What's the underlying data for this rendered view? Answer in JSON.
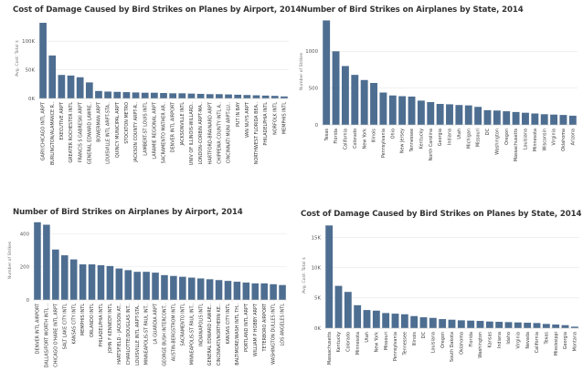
{
  "chart_data": [
    {
      "type": "bar",
      "title": "Cost of Damage Caused by Bird Strikes on Planes by Airport, 2014",
      "ylabel": "Avg. Cost: Total $",
      "xlabel": "",
      "ylim": [
        0,
        140000
      ],
      "yticks": [
        0,
        50000,
        100000
      ],
      "ytick_labels": [
        "0K",
        "50K",
        "100K"
      ],
      "grid": true,
      "color": "#4e6e91",
      "categories": [
        "GARY/CHICAGO INTL ARPT",
        "BURLINGTON/ALAMANCE R..",
        "EXECUTIVE ARPT",
        "GREATER ROCHESTER INTL",
        "FRANCIS S GABRESKI ARPT",
        "GENERAL EDWARD LAWRE..",
        "BOWERMAN ARPT",
        "LOUISVILLE INTL ARPT-STA..",
        "QUINCY MUNICIPAL ARPT",
        "STOCKTON METRO",
        "JACKSON COUNTY ARPT-R..",
        "LAMBERT-ST LOUIS INTL",
        "LARAMIE REGIONAL ARPT",
        "SACRAMENTO MATHER AR..",
        "DENVER INTL AIRPORT",
        "JACKSONVILLE INTL",
        "UNIV OF ILLINOIS-WILLARD..",
        "LONDON-CORBIN ARPT-MA..",
        "HARTFORD-BRAINARD ARPT",
        "CHIPPEWA COUNTY INTL A..",
        "CINCINNATI MUNI ARPT-LU..",
        "PUT IN BAY",
        "VAN NUYS ARPT",
        "NORTHWEST FLORIDA BEA..",
        "PHILADELPHIA INTL",
        "NORFOLK INTL",
        "MEMPHIS INTL"
      ],
      "values": [
        132000,
        75000,
        41000,
        40000,
        37000,
        28000,
        13000,
        12000,
        11500,
        11000,
        10500,
        10000,
        10000,
        9500,
        9000,
        9000,
        8500,
        8000,
        7500,
        7500,
        7000,
        6500,
        6000,
        5500,
        5000,
        4500,
        3500
      ]
    },
    {
      "type": "bar",
      "title": "Number of Bird Strikes on Airplanes by State, 2014",
      "ylabel": "Number of Strikes",
      "xlabel": "",
      "ylim": [
        0,
        1450
      ],
      "yticks": [
        0,
        500,
        1000
      ],
      "ytick_labels": [
        "0",
        "500",
        "1000"
      ],
      "grid": true,
      "color": "#4e6e91",
      "categories": [
        "Texas",
        "Florida",
        "California",
        "Colorado",
        "New York",
        "Illinois",
        "Pennsylvania",
        "Ohio",
        "New Jersey",
        "Tennessee",
        "Kentucky",
        "North Carolina",
        "Georgia",
        "Indiana",
        "Utah",
        "Michigan",
        "Missouri",
        "DC",
        "Washington",
        "Oregon",
        "Massachusetts",
        "Louisiana",
        "Minnesota",
        "Wisconsin",
        "Virginia",
        "Oklahoma",
        "Arizona"
      ],
      "values": [
        1420,
        1000,
        800,
        680,
        610,
        570,
        440,
        400,
        390,
        385,
        330,
        310,
        285,
        280,
        270,
        265,
        245,
        200,
        195,
        185,
        175,
        165,
        155,
        145,
        140,
        135,
        125
      ]
    },
    {
      "type": "bar",
      "title": "Number of Bird Strikes on Airplanes by Airport, 2014",
      "ylabel": "Number of Strikes",
      "xlabel": "",
      "ylim": [
        0,
        480
      ],
      "yticks": [
        0,
        200,
        400
      ],
      "ytick_labels": [
        "0",
        "200",
        "400"
      ],
      "grid": true,
      "color": "#4e6e91",
      "categories": [
        "DENVER INTL AIRPORT",
        "DALLAS/FORT WORTH INTL ..",
        "CHICAGO O'HARE INTL ARPT",
        "SALT LAKE CITY INTL",
        "KANSAS CITY INTL",
        "MEMPHIS INTL",
        "ORLANDO INTL",
        "PHILADELPHIA INTL",
        "JOHN F KENNEDY INTL",
        "HARTSFIELD - JACKSON AT..",
        "CHARLOTTE/DOUGLAS INT..",
        "LOUISVILLE INTL ARPT-STA..",
        "MINNEAPOLIS-ST PAUL INT..",
        "LA GUARDIA ARPT",
        "GEORGE BUSH INTERCONT..",
        "AUSTIN-BERGSTROM INTL",
        "SACRAMENTO INTL",
        "MINNEAPOLIS-ST PAUL INT..",
        "INDIANAPOLIS INTL",
        "GENERAL EDWARD LAWRE..",
        "CINCINNATI/NORTHERN KE..",
        "KANSAS CITY INTL",
        "BALTIMORE/WASH INTL TH..",
        "PORTLAND INTL ARPT",
        "WILLIAM P HOBBY ARPT",
        "TETERBORO AIRPORT",
        "WASHINGTON DULLES INTL",
        "LOS ANGELES INTL"
      ],
      "values": [
        470,
        455,
        305,
        270,
        245,
        215,
        215,
        210,
        205,
        190,
        180,
        170,
        170,
        165,
        150,
        145,
        140,
        135,
        130,
        125,
        120,
        115,
        110,
        105,
        100,
        100,
        95,
        90
      ]
    },
    {
      "type": "bar",
      "title": "Cost of Damage Caused by Bird Strikes on Planes by State, 2014",
      "ylabel": "Avg. Cost: Total $",
      "xlabel": "",
      "ylim": [
        0,
        17500
      ],
      "yticks": [
        0,
        5000,
        10000,
        15000
      ],
      "ytick_labels": [
        "0K",
        "5K",
        "10K",
        "15K"
      ],
      "grid": true,
      "color": "#4e6e91",
      "categories": [
        "Massachusetts",
        "Kentucky",
        "Colorado",
        "Minnesota",
        "Utah",
        "New York",
        "Missouri",
        "Pennsylvania",
        "Tennessee",
        "Illinois",
        "DC",
        "Louisiana",
        "Oregon",
        "South Dakota",
        "Oklahoma",
        "Florida",
        "Washington",
        "Kansas",
        "Indiana",
        "Idaho",
        "Virginia",
        "Nevada",
        "California",
        "Texas",
        "Mississippi",
        "Georgia",
        "Montana"
      ],
      "values": [
        17000,
        7000,
        6000,
        3800,
        3000,
        2900,
        2500,
        2400,
        2300,
        2000,
        1800,
        1700,
        1500,
        1400,
        1300,
        1250,
        1200,
        1100,
        1050,
        1000,
        950,
        900,
        850,
        700,
        600,
        500,
        250
      ]
    }
  ]
}
